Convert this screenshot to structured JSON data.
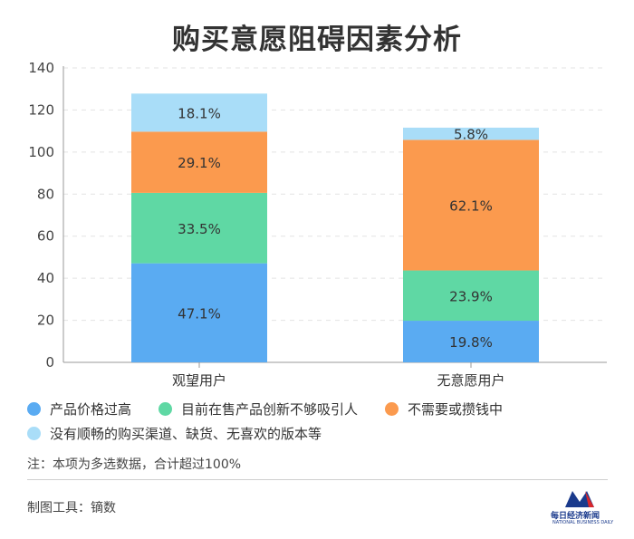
{
  "chart_data": {
    "type": "bar",
    "stacked": true,
    "title": "购买意愿阻碍因素分析",
    "categories": [
      "观望用户",
      "无意愿用户"
    ],
    "ylim": [
      0,
      140
    ],
    "yticks": [
      0,
      20,
      40,
      60,
      80,
      100,
      120,
      140
    ],
    "grid": true,
    "legend_position": "bottom",
    "series": [
      {
        "name": "产品价格过高",
        "color": "#5aabf2",
        "values": [
          47.1,
          19.8
        ],
        "labels": [
          "47.1%",
          "19.8%"
        ]
      },
      {
        "name": "目前在售产品创新不够吸引人",
        "color": "#5fd8a4",
        "values": [
          33.5,
          23.9
        ],
        "labels": [
          "33.5%",
          "23.9%"
        ]
      },
      {
        "name": "不需要或攒钱中",
        "color": "#fb9a4e",
        "values": [
          29.1,
          62.1
        ],
        "labels": [
          "29.1%",
          "62.1%"
        ]
      },
      {
        "name": "没有顺畅的购买渠道、缺货、无喜欢的版本等",
        "color": "#a9ddf8",
        "values": [
          18.1,
          5.8
        ],
        "labels": [
          "18.1%",
          "5.8%"
        ]
      }
    ]
  },
  "note": "注：本项为多选数据，合计超过100%",
  "tool": "制图工具：镝数",
  "logo": {
    "text": "每日经济新闻",
    "sub": "NATIONAL BUSINESS DAILY"
  }
}
